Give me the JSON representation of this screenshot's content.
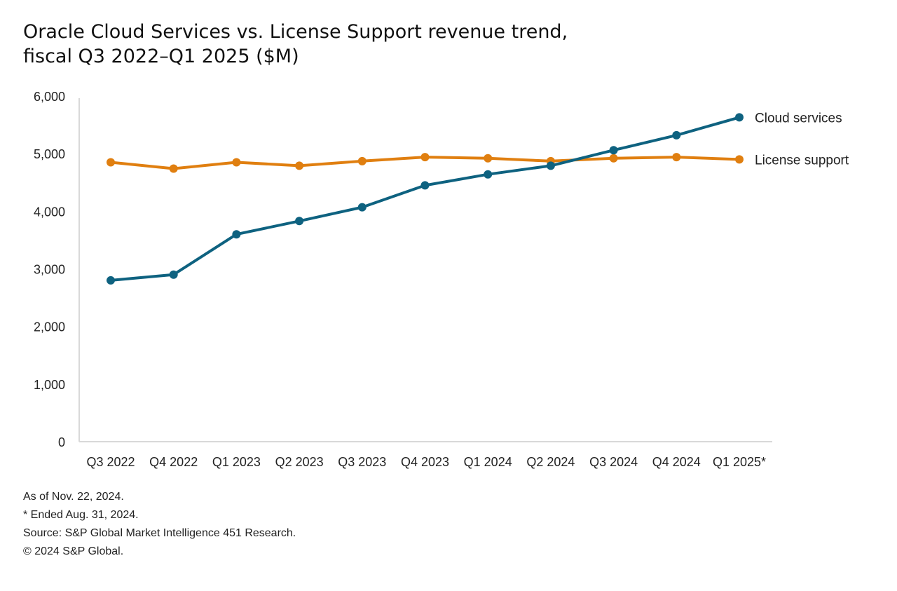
{
  "chart_data": {
    "type": "line",
    "title_lines": [
      "Oracle Cloud Services vs. License Support revenue trend,",
      "fiscal Q3 2022–Q1 2025 ($M)"
    ],
    "categories": [
      "Q3 2022",
      "Q4 2022",
      "Q1 2023",
      "Q2 2023",
      "Q3 2023",
      "Q4 2023",
      "Q1 2024",
      "Q2 2024",
      "Q3 2024",
      "Q4 2024",
      "Q1 2025*"
    ],
    "y_ticks": [
      "0",
      "1,000",
      "2,000",
      "3,000",
      "4,000",
      "5,000",
      "6,000"
    ],
    "ylim": [
      0,
      6000
    ],
    "grid": false,
    "legend": "inline labels at right end of each line",
    "series": [
      {
        "name": "Cloud services",
        "color": "#0e6280",
        "values": [
          2800,
          2900,
          3600,
          3830,
          4070,
          4450,
          4640,
          4790,
          5060,
          5320,
          5630
        ]
      },
      {
        "name": "License support",
        "color": "#e07f10",
        "values": [
          4850,
          4740,
          4850,
          4790,
          4870,
          4940,
          4920,
          4870,
          4920,
          4940,
          4900
        ]
      }
    ]
  },
  "notes": {
    "as_of": "As of Nov. 22, 2024.",
    "ended": "* Ended Aug. 31, 2024.",
    "source": "Source: S&P Global Market Intelligence 451 Research.",
    "copyright": "© 2024 S&P Global."
  }
}
